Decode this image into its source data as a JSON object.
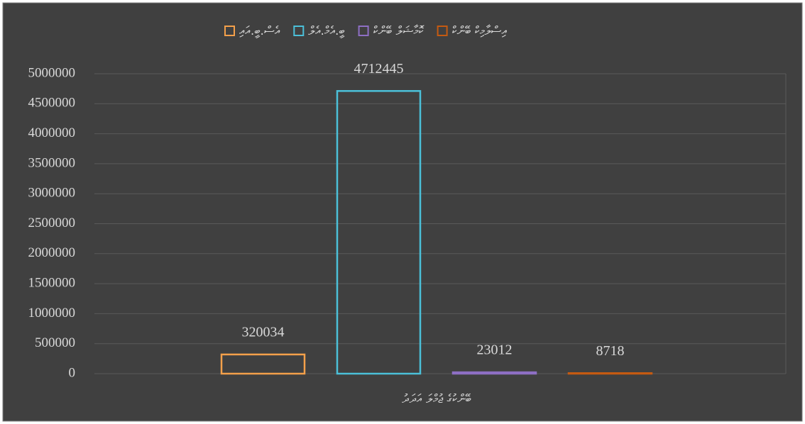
{
  "chart_data": {
    "type": "bar",
    "categories": [
      "ބޭންކުގެ ޖުމްލަ އަދަދު"
    ],
    "series": [
      {
        "name": "އެސް.ބީ.އައި",
        "color": "#f4a04a",
        "values": [
          320034
        ]
      },
      {
        "name": "ބީ.އެމް.އެލް",
        "color": "#4bc0d9",
        "values": [
          4712445
        ]
      },
      {
        "name": "ކޮމާޝަލް ބޭންކް",
        "color": "#8e6fc4",
        "values": [
          23012
        ]
      },
      {
        "name": "އިސްލާމިކް ބޭންކް",
        "color": "#c55a11",
        "values": [
          8718
        ]
      }
    ],
    "ylim": [
      0,
      5000000
    ],
    "yticks": [
      0,
      500000,
      1000000,
      1500000,
      2000000,
      2500000,
      3000000,
      3500000,
      4000000,
      4500000,
      5000000
    ],
    "grid": true,
    "legend": "top"
  }
}
